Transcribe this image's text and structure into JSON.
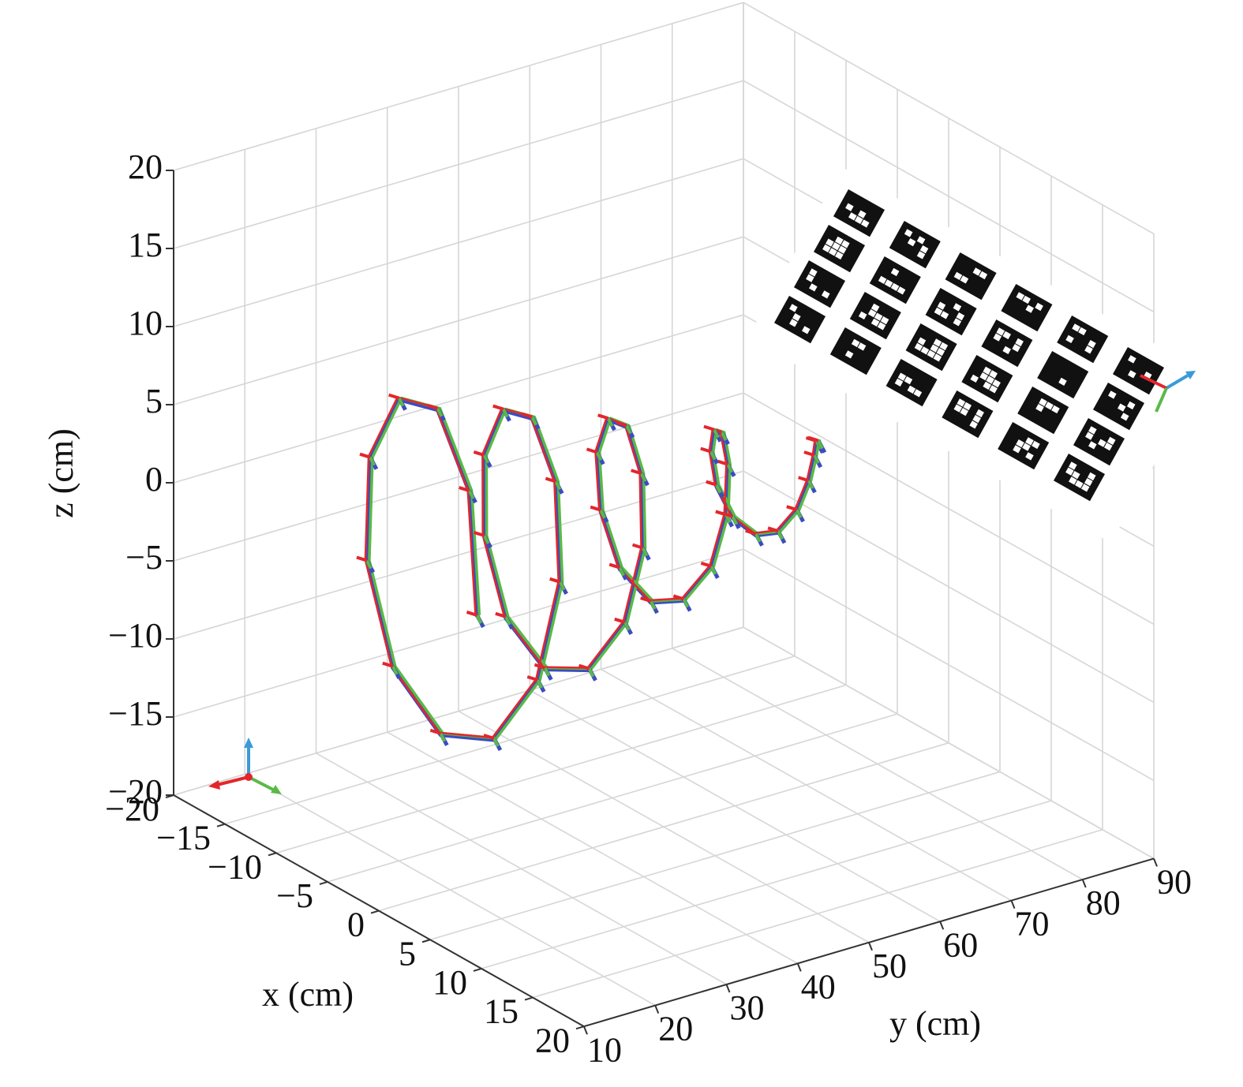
{
  "chart_data": {
    "type": "line3d",
    "x_label": "x (cm)",
    "y_label": "y (cm)",
    "z_label": "z (cm)",
    "grid": true,
    "colors": [
      "#3b4cc0",
      "#5ab946",
      "#e3262c"
    ],
    "xlim": [
      -20,
      20
    ],
    "ylim": [
      10,
      90
    ],
    "zlim": [
      -20,
      20
    ],
    "xticks": [
      {
        "value": -20,
        "label": "−20"
      },
      {
        "value": -15,
        "label": "−15"
      },
      {
        "value": -10,
        "label": "−10"
      },
      {
        "value": -5,
        "label": "−5"
      },
      0,
      5,
      10,
      15,
      20
    ],
    "yticks": [
      10,
      20,
      30,
      40,
      50,
      60,
      70,
      80,
      90
    ],
    "zticks": [
      {
        "value": -20,
        "label": "−20"
      },
      {
        "value": -15,
        "label": "−15"
      },
      {
        "value": -10,
        "label": "−10"
      },
      {
        "value": -5,
        "label": "−5"
      },
      0,
      5,
      10,
      15,
      20
    ],
    "x": [
      5.2,
      4.1,
      1.5,
      -1.5,
      -3.9,
      -4.7,
      -3.7,
      -1.4,
      1.3,
      3.4,
      4.2,
      3.3,
      1.2,
      -1.2,
      -3.0,
      -3.6,
      -2.9,
      -1.1,
      1.0,
      2.6,
      3.1,
      2.4,
      0.9,
      -0.9,
      -2.2,
      -2.6,
      -2.0,
      -0.7,
      0.7,
      1.8,
      2.1,
      1.6,
      0.6,
      -0.5,
      -1.3,
      -1.6,
      -1.2,
      -0.4,
      0.4,
      0.9,
      1.0,
      0.8,
      0.3,
      -0.2
    ],
    "y": [
      16.3,
      16.8,
      16.1,
      15.0,
      14.4,
      15.1,
      17.3,
      20.7,
      24.3,
      27.4,
      29.4,
      30.1,
      29.8,
      29.2,
      29.1,
      30.0,
      32.0,
      34.9,
      38.1,
      40.8,
      42.6,
      43.4,
      43.5,
      43.5,
      43.8,
      44.9,
      46.7,
      49.2,
      51.8,
      54.1,
      55.7,
      56.7,
      57.3,
      57.8,
      58.5,
      59.7,
      61.4,
      63.5,
      65.5,
      67.4,
      68.9,
      70.0,
      71.0,
      72.0
    ],
    "z": [
      0,
      7.5,
      11.9,
      11.6,
      7.0,
      0,
      -6.7,
      -10.6,
      -10.4,
      -6.3,
      0,
      6.0,
      9.4,
      9.1,
      5.5,
      0,
      -5.2,
      -8.2,
      -7.9,
      -4.7,
      0,
      4.4,
      6.9,
      6.7,
      4.0,
      0,
      -3.7,
      -5.7,
      -5.4,
      -3.2,
      0,
      2.9,
      4.5,
      4.2,
      2.4,
      0,
      -2.1,
      -3.2,
      -3.0,
      -1.7,
      0,
      1.4,
      2.0,
      1.7
    ]
  }
}
